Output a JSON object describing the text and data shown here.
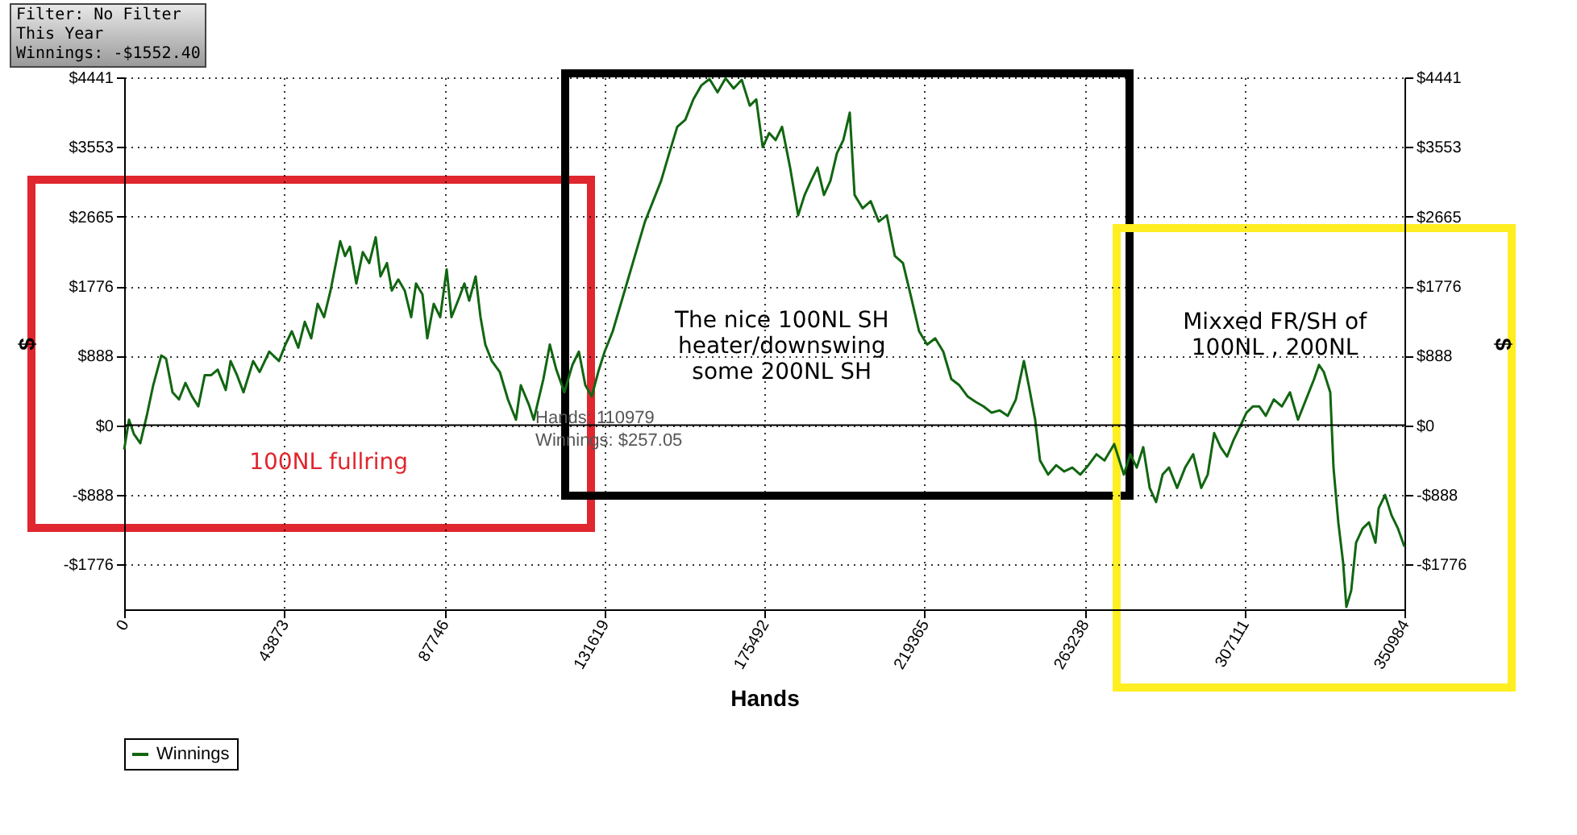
{
  "chart_data": {
    "type": "line",
    "xlabel": "Hands",
    "ylabel": "$",
    "y2label": "$",
    "xlim": [
      0,
      350984
    ],
    "xticks": [
      0,
      43873,
      87746,
      131619,
      175492,
      219365,
      263238,
      307111,
      350984
    ],
    "ylim": [
      -2350,
      4441
    ],
    "yticks": [
      {
        "value": -1776,
        "label": "-$1776"
      },
      {
        "value": -888,
        "label": "-$888"
      },
      {
        "value": 0,
        "label": "$0"
      },
      {
        "value": 888,
        "label": "$888"
      },
      {
        "value": 1776,
        "label": "$1776"
      },
      {
        "value": 2665,
        "label": "$2665"
      },
      {
        "value": 3553,
        "label": "$3553"
      },
      {
        "value": 4441,
        "label": "$4441"
      }
    ],
    "y2lim": [
      -2350,
      4441
    ],
    "y2ticks": [
      {
        "value": -1776,
        "label": "-$1776"
      },
      {
        "value": -888,
        "label": "-$888"
      },
      {
        "value": 0,
        "label": "$0"
      },
      {
        "value": 888,
        "label": "$888"
      },
      {
        "value": 1776,
        "label": "$1776"
      },
      {
        "value": 2665,
        "label": "$2665"
      },
      {
        "value": 3553,
        "label": "$3553"
      },
      {
        "value": 4441,
        "label": "$4441"
      }
    ],
    "grid": true,
    "legend": "bottom left",
    "marker": "none",
    "line_style": "solid",
    "ref_lines": [
      {
        "axis": "y",
        "value": 0,
        "color": "#000000"
      }
    ],
    "annotations": [
      "Filter: No Filter",
      "This Year",
      "Winnings: -$1552.40",
      {
        "text": "Hands: 110979\nWinnings: $257.05",
        "x": 110979,
        "y": 257.05
      },
      "100NL fullring",
      "The nice 100NL SH heater/downswing some 200NL SH",
      "Mixxed FR/SH of 100NL , 200NL"
    ],
    "series": [
      {
        "name": "Winnings",
        "color": "#116611",
        "x": [
          0,
          1330,
          2650,
          4420,
          6190,
          7960,
          10170,
          11490,
          13260,
          15030,
          16800,
          18570,
          20330,
          22100,
          23870,
          25640,
          27850,
          29170,
          30940,
          32710,
          35360,
          37130,
          39780,
          42440,
          44200,
          45970,
          47740,
          49510,
          51280,
          53040,
          54810,
          56580,
          59230,
          60560,
          61890,
          63650,
          65420,
          67190,
          68960,
          70280,
          72050,
          73380,
          75150,
          76910,
          78680,
          80010,
          81780,
          83100,
          84870,
          86640,
          88410,
          89730,
          91940,
          93270,
          94590,
          96360,
          97690,
          99010,
          100780,
          102990,
          105200,
          107410,
          108740,
          110979,
          112280,
          114930,
          116700,
          118470,
          120680,
          122890,
          124660,
          126430,
          128190,
          129960,
          131730,
          133940,
          136150,
          138360,
          140570,
          142780,
          144990,
          147200,
          149410,
          151620,
          153830,
          156040,
          158250,
          160460,
          162670,
          164880,
          167090,
          169300,
          171510,
          173280,
          175050,
          176820,
          178580,
          180350,
          182560,
          184770,
          186540,
          188310,
          190080,
          191850,
          193610,
          195380,
          197150,
          198920,
          200240,
          202450,
          204660,
          206870,
          209080,
          211290,
          213500,
          215710,
          217920,
          220130,
          222340,
          224550,
          226760,
          228970,
          231180,
          233390,
          235600,
          237810,
          240020,
          242240,
          244450,
          246660,
          247980,
          249750,
          251080,
          253290,
          255500,
          257710,
          259920,
          262130,
          264340,
          266550,
          268760,
          271410,
          274060,
          275830,
          277600,
          279370,
          281140,
          282900,
          284670,
          286440,
          288650,
          290860,
          293070,
          295280,
          297050,
          298820,
          300590,
          302350,
          304120,
          305890,
          307660,
          309430,
          311200,
          312960,
          315170,
          317380,
          319590,
          321800,
          324010,
          326220,
          327550,
          328870,
          330640,
          331530,
          332850,
          334180,
          335060,
          336390,
          337720,
          339490,
          341260,
          343030,
          343910,
          345680,
          347450,
          349220,
          350984
        ],
        "values": [
          -310,
          70,
          -110,
          -230,
          120,
          510,
          890,
          850,
          420,
          330,
          540,
          370,
          240,
          640,
          640,
          710,
          450,
          820,
          640,
          420,
          820,
          680,
          940,
          820,
          1030,
          1200,
          990,
          1320,
          1110,
          1550,
          1380,
          1720,
          2350,
          2160,
          2280,
          1810,
          2210,
          2070,
          2400,
          1900,
          2070,
          1720,
          1860,
          1720,
          1380,
          1810,
          1670,
          1110,
          1550,
          1380,
          1990,
          1380,
          1640,
          1810,
          1590,
          1900,
          1380,
          1030,
          820,
          680,
          330,
          70,
          510,
          260,
          70,
          590,
          1030,
          710,
          420,
          770,
          940,
          510,
          370,
          680,
          940,
          1200,
          1550,
          1900,
          2250,
          2600,
          2860,
          3120,
          3470,
          3810,
          3900,
          4160,
          4340,
          4420,
          4250,
          4430,
          4300,
          4410,
          4080,
          4160,
          3550,
          3730,
          3640,
          3810,
          3290,
          2680,
          2940,
          3120,
          3290,
          2940,
          3120,
          3470,
          3640,
          3990,
          2940,
          2770,
          2860,
          2600,
          2680,
          2160,
          2070,
          1640,
          1200,
          1030,
          1110,
          940,
          590,
          510,
          370,
          300,
          240,
          160,
          190,
          120,
          330,
          820,
          510,
          70,
          -450,
          -630,
          -510,
          -590,
          -540,
          -630,
          -510,
          -370,
          -450,
          -240,
          -630,
          -370,
          -540,
          -280,
          -800,
          -980,
          -630,
          -540,
          -800,
          -540,
          -370,
          -800,
          -630,
          -100,
          -280,
          -400,
          -190,
          -20,
          160,
          240,
          240,
          120,
          330,
          240,
          420,
          70,
          330,
          590,
          770,
          680,
          420,
          -540,
          -1240,
          -1760,
          -2320,
          -2110,
          -1500,
          -1320,
          -1240,
          -1500,
          -1060,
          -890,
          -1150,
          -1320,
          -1550
        ]
      }
    ]
  }
}
